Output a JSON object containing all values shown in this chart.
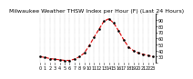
{
  "title": "Milwaukee Weather THSW Index per Hour (F) (Last 24 Hours)",
  "hours": [
    0,
    1,
    2,
    3,
    4,
    5,
    6,
    7,
    8,
    9,
    10,
    11,
    12,
    13,
    14,
    15,
    16,
    17,
    18,
    19,
    20,
    21,
    22,
    23
  ],
  "values": [
    30,
    29,
    27,
    26,
    25,
    24,
    24,
    26,
    30,
    36,
    48,
    62,
    75,
    88,
    92,
    85,
    72,
    58,
    46,
    40,
    36,
    34,
    32,
    30
  ],
  "line_color": "#dd0000",
  "marker_color": "#000000",
  "bg_color": "#ffffff",
  "ylim_min": 20,
  "ylim_max": 100,
  "ytick_labels": [
    "",
    "30",
    "40",
    "50",
    "60",
    "70",
    "80",
    "90",
    ""
  ],
  "ytick_vals": [
    20,
    30,
    40,
    50,
    60,
    70,
    80,
    90,
    100
  ],
  "grid_color": "#999999",
  "title_fontsize": 4.5,
  "tick_fontsize": 3.5,
  "line_width": 0.8,
  "marker_size": 1.8
}
